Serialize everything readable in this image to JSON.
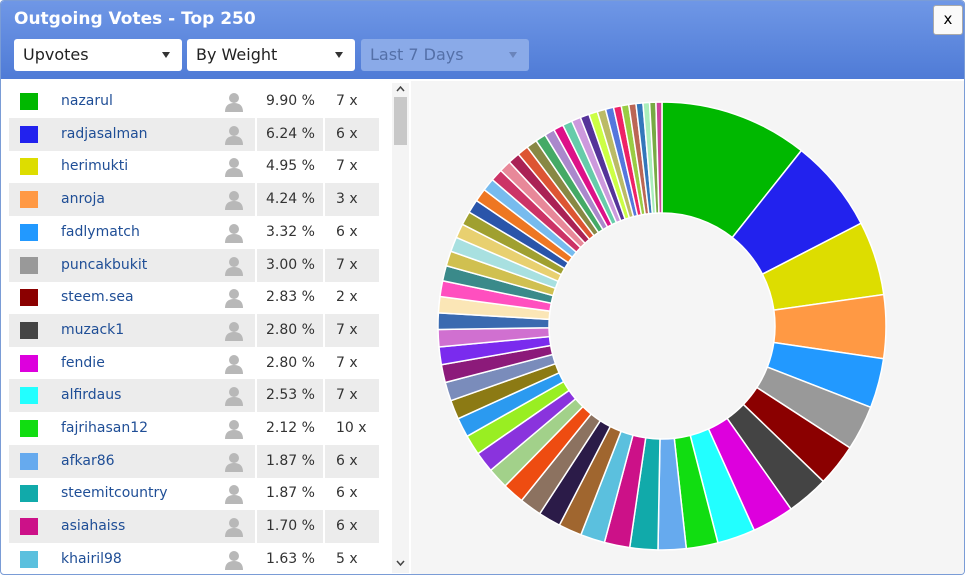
{
  "header": {
    "title": "Outgoing Votes - Top 250",
    "close": "x"
  },
  "filters": [
    "Upvotes",
    "By Weight",
    "Last 7 Days"
  ],
  "table": {
    "rows": [
      {
        "name": "nazarul",
        "share": "9.90 %",
        "votes": "7 x"
      },
      {
        "name": "radjasalman",
        "share": "6.24 %",
        "votes": "6 x"
      },
      {
        "name": "herimukti",
        "share": "4.95 %",
        "votes": "7 x"
      },
      {
        "name": "anroja",
        "share": "4.24 %",
        "votes": "3 x"
      },
      {
        "name": "fadlymatch",
        "share": "3.32 %",
        "votes": "6 x"
      },
      {
        "name": "puncakbukit",
        "share": "3.00 %",
        "votes": "7 x"
      },
      {
        "name": "steem.sea",
        "share": "2.83 %",
        "votes": "2 x"
      },
      {
        "name": "muzack1",
        "share": "2.80 %",
        "votes": "7 x"
      },
      {
        "name": "fendie",
        "share": "2.80 %",
        "votes": "7 x"
      },
      {
        "name": "alfirdaus",
        "share": "2.53 %",
        "votes": "7 x"
      },
      {
        "name": "fajrihasan12",
        "share": "2.12 %",
        "votes": "10 x"
      },
      {
        "name": "afkar86",
        "share": "1.87 %",
        "votes": "6 x"
      },
      {
        "name": "steemitcountry",
        "share": "1.87 %",
        "votes": "6 x"
      },
      {
        "name": "asiahaiss",
        "share": "1.70 %",
        "votes": "6 x"
      },
      {
        "name": "khairil98",
        "share": "1.63 %",
        "votes": "5 x"
      }
    ]
  },
  "chart_data": {
    "type": "pie",
    "donut": true,
    "values": [
      9.9,
      6.24,
      4.95,
      4.24,
      3.32,
      3.0,
      2.83,
      2.8,
      2.8,
      2.53,
      2.12,
      1.87,
      1.87,
      1.7,
      1.63,
      1.55,
      1.5,
      1.48,
      1.45,
      1.4,
      1.38,
      1.35,
      1.3,
      1.28,
      1.25,
      1.2,
      1.18,
      1.15,
      1.1,
      1.08,
      1.05,
      1.02,
      1.0,
      0.98,
      0.95,
      0.92,
      0.9,
      0.88,
      0.85,
      0.82,
      0.8,
      0.78,
      0.75,
      0.72,
      0.7,
      0.68,
      0.66,
      0.64,
      0.62,
      0.6,
      0.58,
      0.56,
      0.54,
      0.52,
      0.5,
      0.48,
      0.46,
      0.44,
      0.42,
      0.4
    ],
    "colors": [
      "#00b800",
      "#2222ee",
      "#dddd00",
      "#ff9944",
      "#2299ff",
      "#999999",
      "#8b0000",
      "#444444",
      "#dd00dd",
      "#22ffff",
      "#11dd11",
      "#66aaee",
      "#11aaaa",
      "#cc1188",
      "#5bc0de",
      "#a0662f",
      "#2b1b48",
      "#8c7260",
      "#ee4c11",
      "#a2d18a",
      "#8a33dd",
      "#99ee22",
      "#2b9af0",
      "#8c7a14",
      "#7a8cbb",
      "#8c1a7a",
      "#7a2bee",
      "#d070d0",
      "#3a6ab0",
      "#fbe6b6",
      "#ff4fbf",
      "#3a8a8a",
      "#d0c050",
      "#a8e0e0",
      "#e8d070",
      "#a0a030",
      "#2a55aa",
      "#ee7722",
      "#77bbee",
      "#cc3366",
      "#e88899",
      "#aa2255",
      "#dd5533",
      "#888844",
      "#44aa66",
      "#aa88cc",
      "#dd1188",
      "#66ccaa",
      "#cc99dd",
      "#553399",
      "#ccff44",
      "#bbbb66",
      "#5577dd",
      "#ee2266",
      "#99cc44",
      "#bb6655",
      "#3377bb",
      "#aaeebb",
      "#77aa44",
      "#cc4499"
    ]
  }
}
